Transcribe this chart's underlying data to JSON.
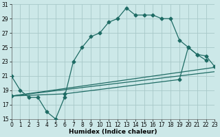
{
  "xlabel": "Humidex (Indice chaleur)",
  "background_color": "#cce8e8",
  "grid_color": "#a8c8c8",
  "line_color": "#1e6b64",
  "xlim": [
    0,
    23
  ],
  "ylim": [
    15,
    31
  ],
  "xticks": [
    0,
    1,
    2,
    3,
    4,
    5,
    6,
    7,
    8,
    9,
    10,
    11,
    12,
    13,
    14,
    15,
    16,
    17,
    18,
    19,
    20,
    21,
    22,
    23
  ],
  "yticks": [
    15,
    17,
    19,
    21,
    23,
    25,
    27,
    29,
    31
  ],
  "curve1_x": [
    0,
    1,
    2,
    3,
    4,
    5,
    6,
    7,
    8,
    9,
    10,
    11,
    12,
    13,
    14,
    15,
    16,
    17,
    18,
    19,
    20,
    21,
    22
  ],
  "curve1_y": [
    21,
    19,
    18,
    18,
    16,
    15,
    18,
    23,
    25,
    26.5,
    27,
    28.5,
    29,
    30.5,
    29.5,
    29.5,
    29.5,
    29,
    29,
    26,
    25,
    24,
    23.2
  ],
  "line2_x": [
    0,
    23
  ],
  "line2_y": [
    18.2,
    22.2
  ],
  "line3_x": [
    0,
    23
  ],
  "line3_y": [
    18.2,
    21.6
  ],
  "curve4_x": [
    0,
    6,
    19,
    20,
    21,
    22,
    23
  ],
  "curve4_y": [
    18.2,
    18.5,
    20.5,
    25,
    24,
    23.8,
    22.3
  ],
  "lw": 0.9,
  "ms": 2.5,
  "tick_fontsize": 5.5,
  "xlabel_fontsize": 6.5
}
